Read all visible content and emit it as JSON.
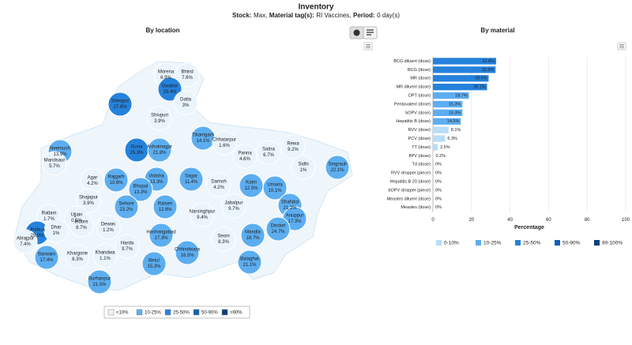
{
  "header": {
    "title": "Inventory",
    "subtitle": [
      "Stock:",
      "Max,",
      "Material tag(s):",
      "RI Vaccines,",
      "Period:",
      "0 day(s)"
    ]
  },
  "map": {
    "title": "By location",
    "names": [
      "Morena",
      "Bhind",
      "Gwalior",
      "Sheopur",
      "Datia",
      "Shivpuri",
      "Tikamgarh",
      "Chhatarpur",
      "Guna",
      "Ashoknagar",
      "Neemuch",
      "Mandsaur",
      "Rewa",
      "Satna",
      "Panna",
      "Sidhi",
      "Singrauli",
      "Agar",
      "Rajgarh",
      "Vidisha",
      "Sagar",
      "Damoh",
      "Katni",
      "Umaria",
      "Bhopal",
      "Shajapur",
      "Sehore",
      "Raisen",
      "Shahdol",
      "Anuppur",
      "Ratlam",
      "Ujjain",
      "Narsinghpur",
      "Jabalpur",
      "Dindori",
      "Jhabua",
      "Dhar",
      "Indore",
      "Dewas",
      "Hoshangabad",
      "Mandla",
      "Seoni",
      "Harda",
      "Alirajpur",
      "Barwani",
      "Khargone",
      "Khandwa",
      "Betul",
      "Chhindwara",
      "Balaghat",
      "Burhanpur"
    ],
    "values": [
      6.9,
      7.6,
      29.4,
      27.8,
      3,
      3.9,
      14.1,
      1.6,
      25.3,
      21.8,
      13.9,
      5.7,
      9.2,
      6.7,
      4.6,
      1,
      22.1,
      4.2,
      10.6,
      13.3,
      11.4,
      4.2,
      12.5,
      10.1,
      13.3,
      3.9,
      23.2,
      12.8,
      21.2,
      17.3,
      1.7,
      0.5,
      9.4,
      9.7,
      24.7,
      25.9,
      1,
      8.7,
      1.2,
      17.3,
      18.7,
      8.3,
      9.7,
      7.4,
      17.4,
      6.3,
      1.1,
      15.3,
      16.5,
      21.1,
      21.5
    ],
    "value_labels": [
      "6.9%",
      "7.6%",
      "29.4%",
      "27.8%",
      "3%",
      "3.9%",
      "14.1%",
      "1.6%",
      "25.3%",
      "21.8%",
      "13.9%",
      "5.7%",
      "9.2%",
      "6.7%",
      "4.6%",
      "1%",
      "22.1%",
      "4.2%",
      "10.6%",
      "13.3%",
      "11.4%",
      "4.2%",
      "12.5%",
      "10.1%",
      "13.3%",
      "3.9%",
      "23.2%",
      "12.8%",
      "21.2%",
      "17.3%",
      "1.7%",
      "0.5%",
      "9.4%",
      "9.7%",
      "24.7%",
      "25.9%",
      "1%",
      "8.7%",
      "1.2%",
      "17.3%",
      "18.7%",
      "8.3%",
      "9.7%",
      "7.4%",
      "17.4%",
      "6.3%",
      "1.1%",
      "15.3%",
      "16.5%",
      "21.1%",
      "21.5%"
    ],
    "legend": [
      {
        "label": "<10%",
        "color": "#eaf4fc",
        "range": [
          0,
          10
        ]
      },
      {
        "label": "10-25%",
        "color": "#5caef0",
        "range": [
          10,
          25
        ]
      },
      {
        "label": "25-50%",
        "color": "#2582dc",
        "range": [
          25,
          50
        ]
      },
      {
        "label": "50-90%",
        "color": "#1060b8",
        "range": [
          50,
          90
        ]
      },
      {
        "label": ">90%",
        "color": "#0a3f80",
        "range": [
          90,
          100
        ]
      }
    ]
  },
  "chart_data": {
    "type": "bar",
    "orientation": "horizontal",
    "title": "By material",
    "x_label": "Percentage",
    "categories": [
      "BCG diluent (dose)",
      "BCG (dose)",
      "MR (dose)",
      "MR diluent (dose)",
      "DPT (dose)",
      "Pentavalent (dose)",
      "bOPV (dose)",
      "Hepatitis B (dose)",
      "RVV (dose)",
      "PCV (dose)",
      "TT (dose)",
      "fIPV (dose)",
      "Td (dose)",
      "RVV dropper (piece)",
      "Hepatitis B 20 (dose)",
      "bOPV dropper (piece)",
      "Measles diluent (dose)",
      "Measles (dose)"
    ],
    "values": [
      32.8,
      32.5,
      28.9,
      28.1,
      18.7,
      15.3,
      15.3,
      14.5,
      8.1,
      6.3,
      2.5,
      0.2,
      0,
      0,
      0,
      0,
      0,
      0
    ],
    "value_labels": [
      "32.8%",
      "32.5%",
      "28.9%",
      "28.1%",
      "18.7%",
      "15.3%",
      "15.3%",
      "14.5%",
      "8.1%",
      "6.3%",
      "2.5%",
      "0.2%",
      "0%",
      "0%",
      "0%",
      "0%",
      "0%",
      "0%"
    ],
    "xlim": [
      0,
      100
    ],
    "xticks": [
      0,
      20,
      40,
      60,
      80,
      100
    ],
    "grid": true,
    "legend": [
      {
        "label": "0-10%",
        "color": "#b8ddf8",
        "range": [
          0,
          10
        ]
      },
      {
        "label": "10-25%",
        "color": "#5caef0",
        "range": [
          10,
          25
        ]
      },
      {
        "label": "25-50%",
        "color": "#2582dc",
        "range": [
          25,
          50
        ]
      },
      {
        "label": "50-90%",
        "color": "#1060b8",
        "range": [
          50,
          90
        ]
      },
      {
        "label": "90-100%",
        "color": "#0a3f80",
        "range": [
          90,
          100
        ]
      }
    ]
  }
}
